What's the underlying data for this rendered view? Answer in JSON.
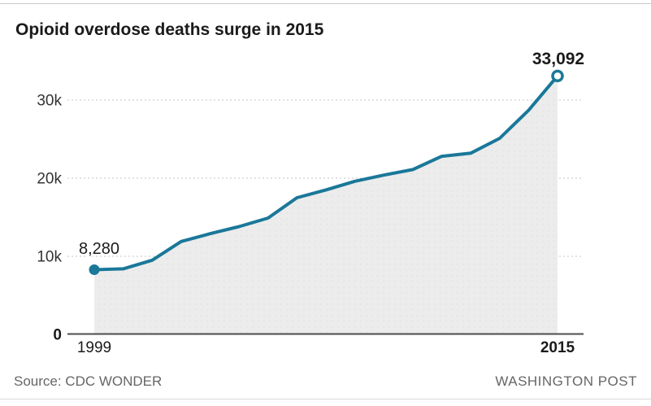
{
  "title": "Opioid overdose deaths surge in 2015",
  "footer": {
    "source": "Source: CDC WONDER",
    "credit": "WASHINGTON POST"
  },
  "colors": {
    "line": "#1a7899",
    "area_fill": "#ececec",
    "area_dot": "#dfdfdf",
    "grid": "#c4c4c4",
    "axis": "#4d4d4d",
    "text_dark": "#1b1b1b",
    "tick_text": "#333333",
    "footer_text": "#666666",
    "endpoint_fill": "#ffffff"
  },
  "chart_data": {
    "type": "area",
    "title": "Opioid overdose deaths surge in 2015",
    "x": [
      1999,
      2000,
      2001,
      2002,
      2003,
      2004,
      2005,
      2006,
      2007,
      2008,
      2009,
      2010,
      2011,
      2012,
      2013,
      2014,
      2015
    ],
    "values": [
      8280,
      8400,
      9500,
      11900,
      12900,
      13800,
      14900,
      17500,
      18500,
      19600,
      20400,
      21100,
      22800,
      23200,
      25100,
      28700,
      33092
    ],
    "xlabel": "",
    "ylabel": "",
    "xlim": [
      1999,
      2015
    ],
    "ylim": [
      0,
      35000
    ],
    "yticks": [
      {
        "value": 0,
        "label": "0",
        "bold": true
      },
      {
        "value": 10000,
        "label": "10k",
        "bold": false
      },
      {
        "value": 20000,
        "label": "20k",
        "bold": false
      },
      {
        "value": 30000,
        "label": "30k",
        "bold": false
      }
    ],
    "xticks": [
      {
        "value": 1999,
        "label": "1999",
        "bold": false
      },
      {
        "value": 2015,
        "label": "2015",
        "bold": true
      }
    ],
    "point_labels": {
      "first": "8,280",
      "last": "33,092"
    },
    "grid": "horizontal-dashed",
    "legend": "none"
  }
}
